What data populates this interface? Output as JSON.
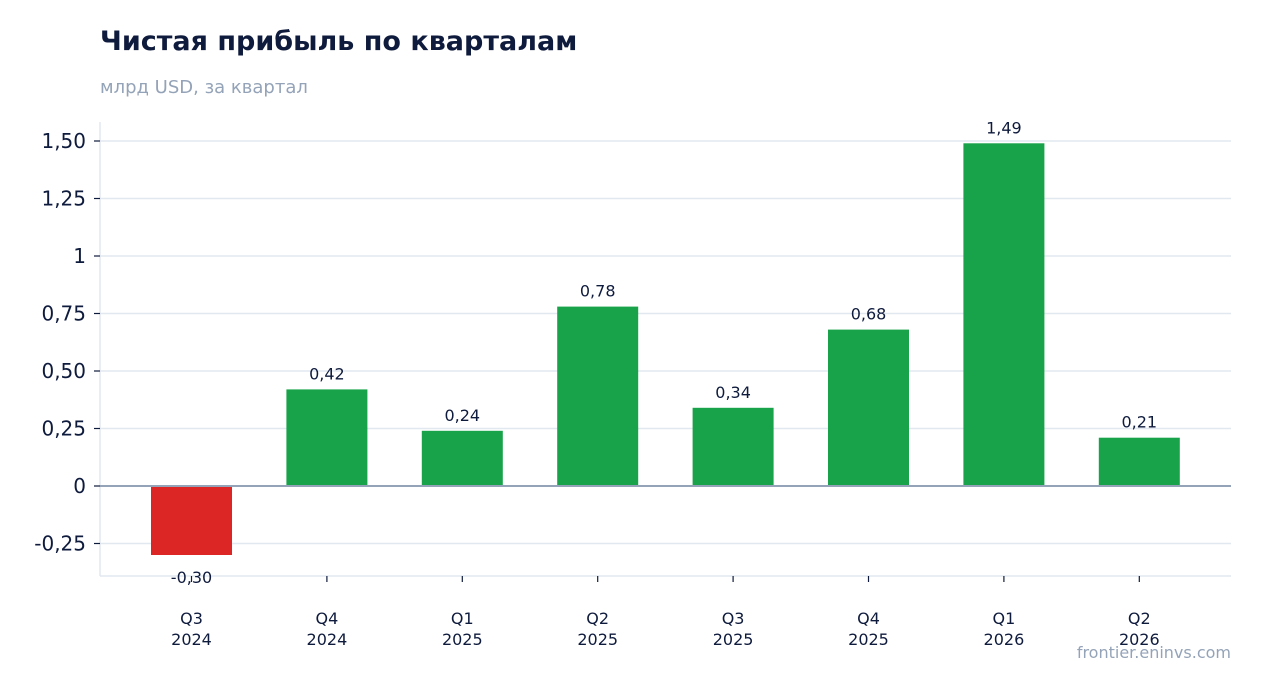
{
  "chart_data": {
    "type": "bar",
    "title": "Чистая прибыль по кварталам",
    "subtitle": "млрд USD, за квартал",
    "xlabel": "",
    "ylabel": "",
    "categories": [
      [
        "Q3",
        "2024"
      ],
      [
        "Q4",
        "2024"
      ],
      [
        "Q1",
        "2025"
      ],
      [
        "Q2",
        "2025"
      ],
      [
        "Q3",
        "2025"
      ],
      [
        "Q4",
        "2025"
      ],
      [
        "Q1",
        "2026"
      ],
      [
        "Q2",
        "2026"
      ]
    ],
    "values": [
      -0.3,
      0.42,
      0.24,
      0.78,
      0.34,
      0.68,
      1.49,
      0.21
    ],
    "value_labels": [
      "-0,30",
      "0,42",
      "0,24",
      "0,78",
      "0,34",
      "0,68",
      "1,49",
      "0,21"
    ],
    "yticks": [
      -0.25,
      0,
      0.25,
      0.5,
      0.75,
      1,
      1.25,
      1.5
    ],
    "ytick_labels": [
      "-0,25",
      "0",
      "0,25",
      "0,50",
      "0,75",
      "1",
      "1,25",
      "1,50"
    ],
    "ylim": [
      -0.39,
      1.58
    ],
    "grid": true,
    "legend": "none",
    "colors": {
      "positive": "#18a34a",
      "negative": "#dc2626",
      "grid": "#e2e8f0",
      "zero_line": "#94a3b8",
      "text": "#0f1b3d",
      "muted": "#94a3b8"
    }
  },
  "footer": {
    "source": "frontier.eninvs.com"
  }
}
